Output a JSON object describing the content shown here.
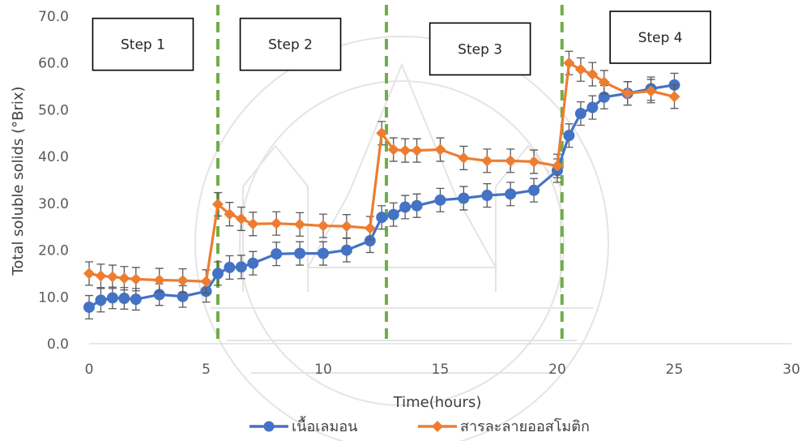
{
  "chart_data": {
    "type": "line",
    "xlabel": "Time(hours)",
    "ylabel": "Total soluble solids (°Brix)",
    "xlim": [
      0,
      30
    ],
    "ylim": [
      0,
      70
    ],
    "x_ticks": [
      "0",
      "5",
      "10",
      "15",
      "20",
      "25",
      "30"
    ],
    "y_ticks": [
      "0.0",
      "10.0",
      "20.0",
      "30.0",
      "40.0",
      "50.0",
      "60.0",
      "70.0"
    ],
    "grid": false,
    "legend_position": "bottom",
    "step_boundaries": [
      5.5,
      12.7,
      20.2
    ],
    "steps": [
      {
        "label": "Step 1",
        "x": 2.3,
        "y": 64
      },
      {
        "label": "Step 2",
        "x": 8.6,
        "y": 64
      },
      {
        "label": "Step 3",
        "x": 16.7,
        "y": 63
      },
      {
        "label": "Step 4",
        "x": 24.4,
        "y": 65.5
      }
    ],
    "series": [
      {
        "name": "เนื้อเลมอน",
        "color": "#4472c4",
        "marker": "circle",
        "points": [
          [
            0,
            7.8,
            2.5
          ],
          [
            0.5,
            9.3,
            2.5
          ],
          [
            1,
            9.8,
            2.3
          ],
          [
            1.5,
            9.7,
            2.3
          ],
          [
            2,
            9.5,
            2.3
          ],
          [
            3,
            10.5,
            2.3
          ],
          [
            4,
            10.1,
            2.3
          ],
          [
            5,
            11.2,
            2.3
          ],
          [
            5.5,
            15.0,
            2.5
          ],
          [
            6,
            16.3,
            2.5
          ],
          [
            6.5,
            16.4,
            2.5
          ],
          [
            7,
            17.2,
            2.5
          ],
          [
            8,
            19.2,
            2.5
          ],
          [
            9,
            19.3,
            2.5
          ],
          [
            10,
            19.3,
            2.5
          ],
          [
            11,
            20.0,
            2.5
          ],
          [
            12,
            22.0,
            2.5
          ],
          [
            12.5,
            27.0,
            2.5
          ],
          [
            13,
            27.6,
            2.5
          ],
          [
            13.5,
            29.2,
            2.5
          ],
          [
            14,
            29.5,
            2.5
          ],
          [
            15,
            30.7,
            2.5
          ],
          [
            16,
            31.1,
            2.5
          ],
          [
            17,
            31.7,
            2.5
          ],
          [
            18,
            32.0,
            2.5
          ],
          [
            19,
            32.8,
            2.5
          ],
          [
            20,
            37.0,
            2.5
          ],
          [
            20.5,
            44.5,
            2.5
          ],
          [
            21,
            49.2,
            2.5
          ],
          [
            21.5,
            50.5,
            2.5
          ],
          [
            22,
            52.7,
            2.5
          ],
          [
            23,
            53.5,
            2.5
          ],
          [
            24,
            54.5,
            2.5
          ],
          [
            25,
            55.3,
            2.5
          ]
        ]
      },
      {
        "name": "สารละลายออสโมติก",
        "color": "#ed7d31",
        "marker": "diamond",
        "points": [
          [
            0,
            15.0,
            2.5
          ],
          [
            0.5,
            14.5,
            2.5
          ],
          [
            1,
            14.3,
            2.5
          ],
          [
            1.5,
            14.0,
            2.5
          ],
          [
            2,
            13.8,
            2.5
          ],
          [
            3,
            13.6,
            2.5
          ],
          [
            4,
            13.5,
            2.5
          ],
          [
            5,
            13.3,
            2.5
          ],
          [
            5.5,
            29.8,
            2.5
          ],
          [
            6,
            27.7,
            2.5
          ],
          [
            6.5,
            26.7,
            2.5
          ],
          [
            7,
            25.6,
            2.5
          ],
          [
            8,
            25.7,
            2.5
          ],
          [
            9,
            25.5,
            2.5
          ],
          [
            10,
            25.2,
            2.5
          ],
          [
            11,
            25.1,
            2.5
          ],
          [
            12,
            24.7,
            2.5
          ],
          [
            12.5,
            45.0,
            2.5
          ],
          [
            13,
            41.5,
            2.5
          ],
          [
            13.5,
            41.3,
            2.5
          ],
          [
            14,
            41.3,
            2.5
          ],
          [
            15,
            41.5,
            2.5
          ],
          [
            16,
            39.7,
            2.5
          ],
          [
            17,
            39.1,
            2.5
          ],
          [
            18,
            39.1,
            2.5
          ],
          [
            19,
            38.9,
            2.5
          ],
          [
            20,
            38.0,
            2.5
          ],
          [
            20.5,
            60.0,
            2.5
          ],
          [
            21,
            58.6,
            2.5
          ],
          [
            21.5,
            57.6,
            2.5
          ],
          [
            22,
            55.9,
            2.5
          ],
          [
            23,
            53.5,
            2.5
          ],
          [
            24,
            54.0,
            2.5
          ],
          [
            25,
            52.8,
            2.5
          ]
        ]
      }
    ]
  }
}
